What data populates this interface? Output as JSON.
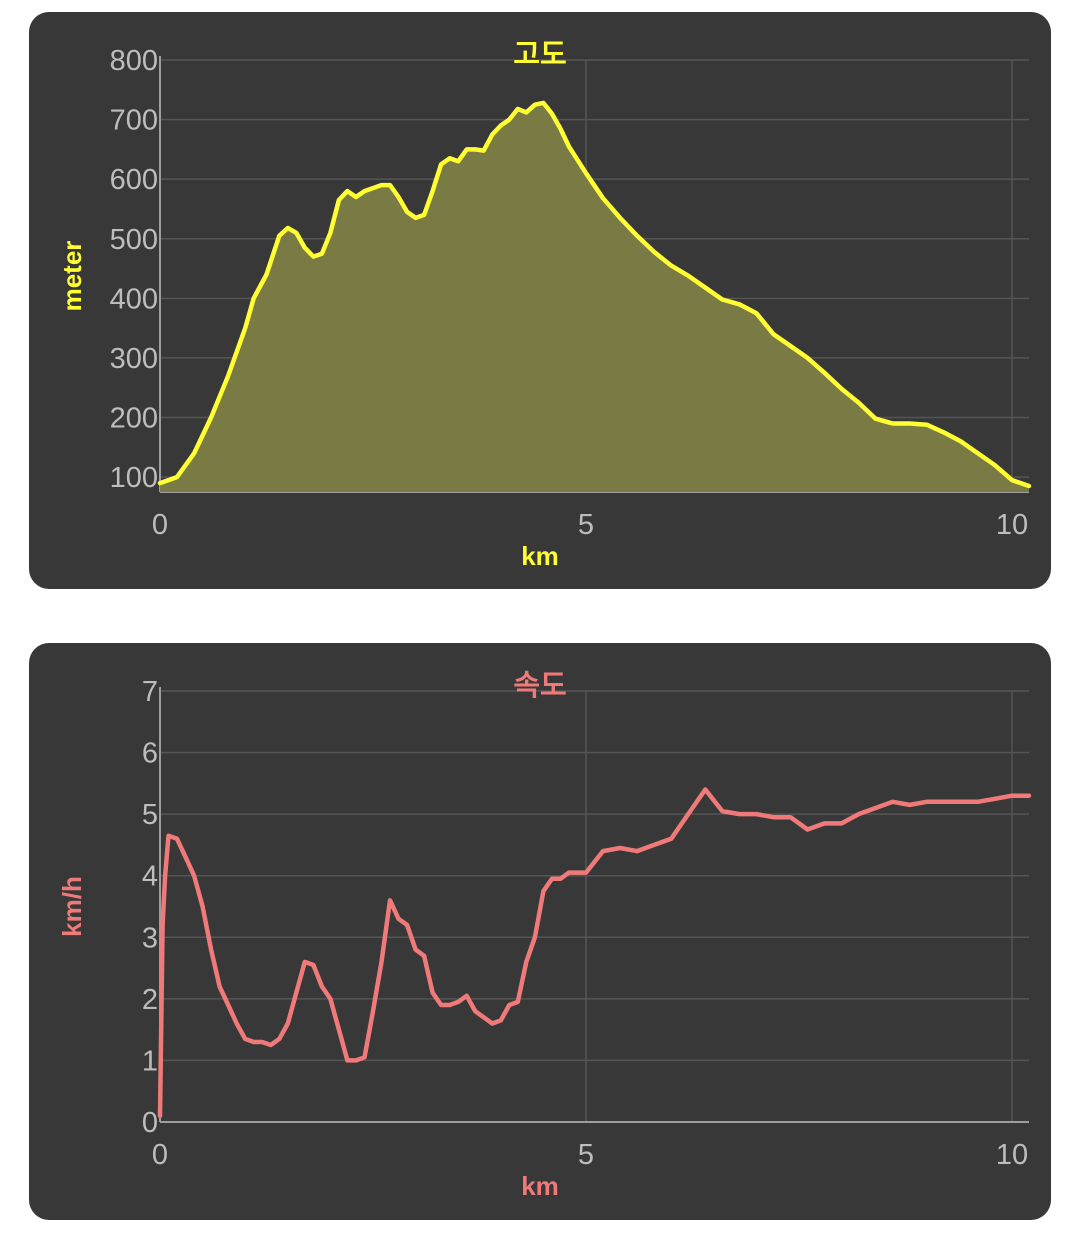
{
  "chart_data": [
    {
      "type": "area",
      "title": "고도",
      "xlabel": "km",
      "ylabel": "meter",
      "color": "#ffff33",
      "fill_color": "#7a7a44",
      "xlim": [
        0,
        10.2
      ],
      "ylim": [
        75,
        800
      ],
      "grid": true,
      "x_ticks": [
        "0",
        "5",
        "10"
      ],
      "y_ticks": [
        "100",
        "200",
        "300",
        "400",
        "500",
        "600",
        "700",
        "800"
      ],
      "x": [
        0,
        0.2,
        0.4,
        0.6,
        0.8,
        1.0,
        1.1,
        1.25,
        1.4,
        1.5,
        1.6,
        1.7,
        1.8,
        1.9,
        2.0,
        2.1,
        2.2,
        2.3,
        2.4,
        2.5,
        2.6,
        2.7,
        2.8,
        2.9,
        3.0,
        3.1,
        3.2,
        3.3,
        3.4,
        3.5,
        3.6,
        3.7,
        3.8,
        3.9,
        4.0,
        4.1,
        4.2,
        4.3,
        4.4,
        4.5,
        4.6,
        4.7,
        4.8,
        5.0,
        5.2,
        5.4,
        5.6,
        5.8,
        6.0,
        6.2,
        6.4,
        6.6,
        6.8,
        7.0,
        7.2,
        7.4,
        7.6,
        7.8,
        8.0,
        8.2,
        8.4,
        8.6,
        8.8,
        9.0,
        9.2,
        9.4,
        9.6,
        9.8,
        10.0,
        10.2
      ],
      "y": [
        90,
        100,
        140,
        200,
        270,
        350,
        400,
        440,
        505,
        518,
        510,
        485,
        470,
        475,
        510,
        565,
        580,
        570,
        580,
        585,
        590,
        590,
        570,
        545,
        535,
        540,
        580,
        625,
        635,
        630,
        650,
        650,
        648,
        675,
        690,
        700,
        718,
        712,
        725,
        728,
        710,
        685,
        655,
        610,
        568,
        535,
        505,
        478,
        455,
        438,
        418,
        398,
        390,
        375,
        340,
        320,
        300,
        275,
        248,
        225,
        198,
        190,
        190,
        188,
        175,
        160,
        140,
        120,
        95,
        85
      ]
    },
    {
      "type": "line",
      "title": "속도",
      "xlabel": "km",
      "ylabel": "km/h",
      "color": "#f07a7a",
      "xlim": [
        0,
        10.2
      ],
      "ylim": [
        0,
        7
      ],
      "grid": true,
      "x_ticks": [
        "0",
        "5",
        "10"
      ],
      "y_ticks": [
        "0",
        "1",
        "2",
        "3",
        "4",
        "5",
        "6",
        "7"
      ],
      "x": [
        0,
        0.03,
        0.06,
        0.1,
        0.2,
        0.3,
        0.4,
        0.5,
        0.6,
        0.7,
        0.8,
        0.9,
        1.0,
        1.1,
        1.2,
        1.3,
        1.4,
        1.5,
        1.6,
        1.7,
        1.8,
        1.9,
        2.0,
        2.1,
        2.2,
        2.3,
        2.4,
        2.5,
        2.6,
        2.7,
        2.8,
        2.9,
        3.0,
        3.1,
        3.2,
        3.3,
        3.4,
        3.5,
        3.6,
        3.7,
        3.8,
        3.9,
        4.0,
        4.1,
        4.2,
        4.3,
        4.4,
        4.5,
        4.6,
        4.7,
        4.8,
        5.0,
        5.2,
        5.4,
        5.6,
        5.8,
        6.0,
        6.2,
        6.4,
        6.6,
        6.8,
        6.9,
        7.0,
        7.2,
        7.4,
        7.6,
        7.8,
        8.0,
        8.2,
        8.4,
        8.6,
        8.8,
        9.0,
        9.2,
        9.4,
        9.6,
        9.8,
        10.0,
        10.2
      ],
      "y": [
        0.1,
        3.2,
        4.0,
        4.65,
        4.6,
        4.3,
        4.0,
        3.5,
        2.8,
        2.2,
        1.9,
        1.6,
        1.35,
        1.3,
        1.3,
        1.25,
        1.35,
        1.6,
        2.1,
        2.6,
        2.55,
        2.2,
        2.0,
        1.5,
        1.0,
        1.0,
        1.05,
        1.8,
        2.6,
        3.6,
        3.3,
        3.2,
        2.8,
        2.7,
        2.1,
        1.9,
        1.9,
        1.95,
        2.05,
        1.8,
        1.7,
        1.6,
        1.65,
        1.9,
        1.95,
        2.6,
        3.0,
        3.75,
        3.95,
        3.95,
        4.05,
        4.05,
        4.4,
        4.45,
        4.4,
        4.5,
        4.6,
        5.0,
        5.4,
        5.05,
        5.0,
        5.0,
        5.0,
        4.95,
        4.95,
        4.75,
        4.85,
        4.85,
        5.0,
        5.1,
        5.2,
        5.15,
        5.2,
        5.2,
        5.2,
        5.2,
        5.25,
        5.3,
        5.3
      ]
    }
  ]
}
